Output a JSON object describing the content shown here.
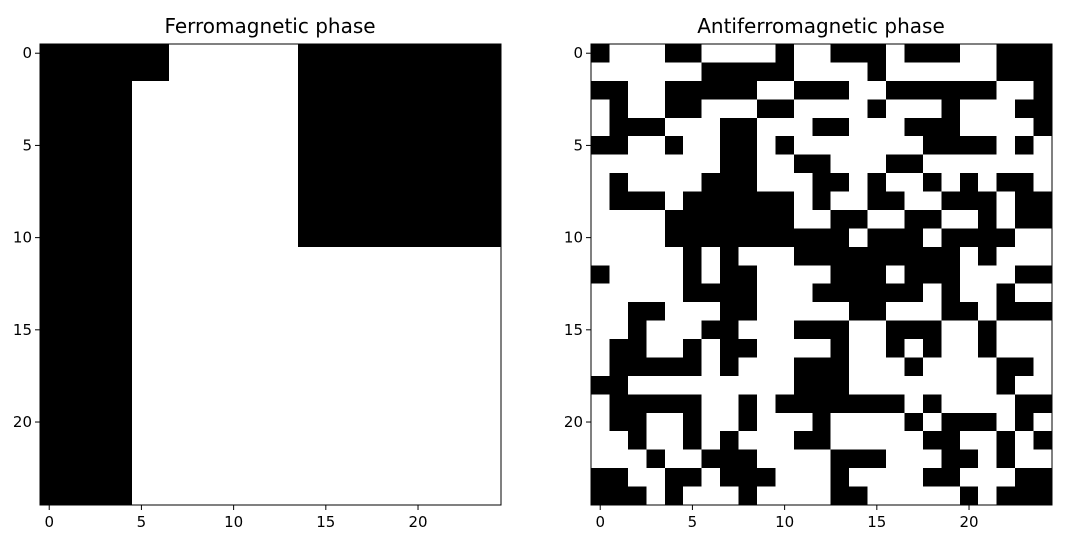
{
  "chart_data": [
    {
      "type": "heatmap",
      "title": "Ferromagnetic phase",
      "colormap": [
        "#000000",
        "#ffffff"
      ],
      "xticks": [
        0,
        5,
        10,
        15,
        20
      ],
      "yticks": [
        0,
        5,
        10,
        15,
        20
      ],
      "xlim": [
        -0.5,
        24.5
      ],
      "ylim": [
        24.5,
        -0.5
      ],
      "grid": false,
      "values": [
        "0000000111111100000000000",
        "0000000111111100000000000",
        "0000011111111100000000000",
        "0000011111111100000000000",
        "0000011111111100000000000",
        "0000011111111100000000000",
        "0000011111111100000000000",
        "0000011111111100000000000",
        "0000011111111100000000000",
        "0000011111111100000000000",
        "0000011111111100000000000",
        "0000011111111111111111111",
        "0000011111111111111111111",
        "0000011111111111111111111",
        "0000011111111111111111111",
        "0000011111111111111111111",
        "0000011111111111111111111",
        "0000011111111111111111111",
        "0000011111111111111111111",
        "0000011111111111111111111",
        "0000011111111111111111111",
        "0000011111111111111111111",
        "0000011111111111111111111",
        "0000011111111111111111111",
        "0000011111111111111111111"
      ]
    },
    {
      "type": "heatmap",
      "title": "Antiferromagnetic phase",
      "colormap": [
        "#000000",
        "#ffffff"
      ],
      "xticks": [
        0,
        5,
        10,
        15,
        20
      ],
      "yticks": [
        0,
        5,
        10,
        15,
        20
      ],
      "xlim": [
        -0.5,
        24.5
      ],
      "ylim": [
        24.5,
        -0.5
      ],
      "grid": false,
      "values": [
        "0111001111011000100011000",
        "1111110000011110111111000",
        "0011000001100011000000110",
        "1011001110011110111011100",
        "1000111001110011100011110",
        "0011011001011111110000101",
        "1111111001100111001111111",
        "1011110001110010110101001",
        "1000100000010110011000100",
        "1111000000011001100110100",
        "1111000000000010001000011",
        "1111101011100000000010111",
        "0111101001111000100011100",
        "1111100001110000001011011",
        "1100111001111100111001000",
        "1101110011100011000110111",
        "1001101001111011010110111",
        "1000001011100011101111001",
        "0011111111100011111111011",
        "1000001101000000010111100",
        "1001101101110111101000101",
        "1101101011100111110011010",
        "1110110001111000111001011",
        "0011001000111011110011100",
        "0001011101111001111101000"
      ]
    }
  ]
}
